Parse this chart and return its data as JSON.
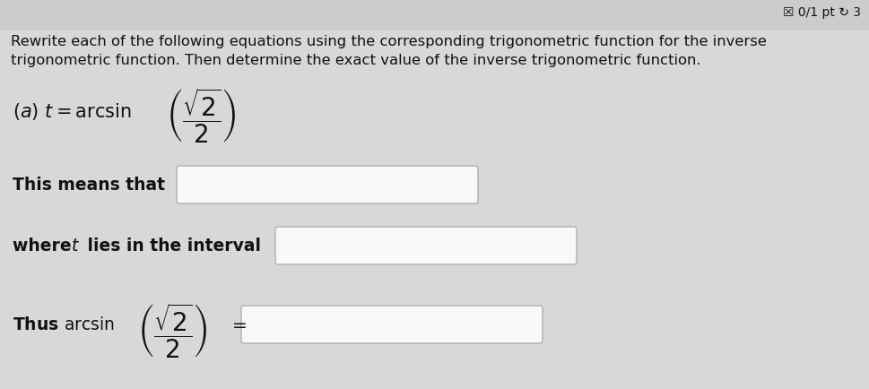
{
  "background_color": "#d8d8d8",
  "content_bg": "#f0f0f0",
  "score_text": "☒ 0/1 pt ↻ 3",
  "title_line1": "Rewrite each of the following equations using the corresponding trigonometric function for the inverse",
  "title_line2": "trigonometric function. Then determine the exact value of the inverse trigonometric function.",
  "title_fontsize": 11.8,
  "text_color": "#111111",
  "box_edge_color": "#b0b0b0",
  "box_face_color": "#f8f8f8",
  "eq_fontsize": 15,
  "body_fontsize": 13.5,
  "score_fontsize": 10
}
